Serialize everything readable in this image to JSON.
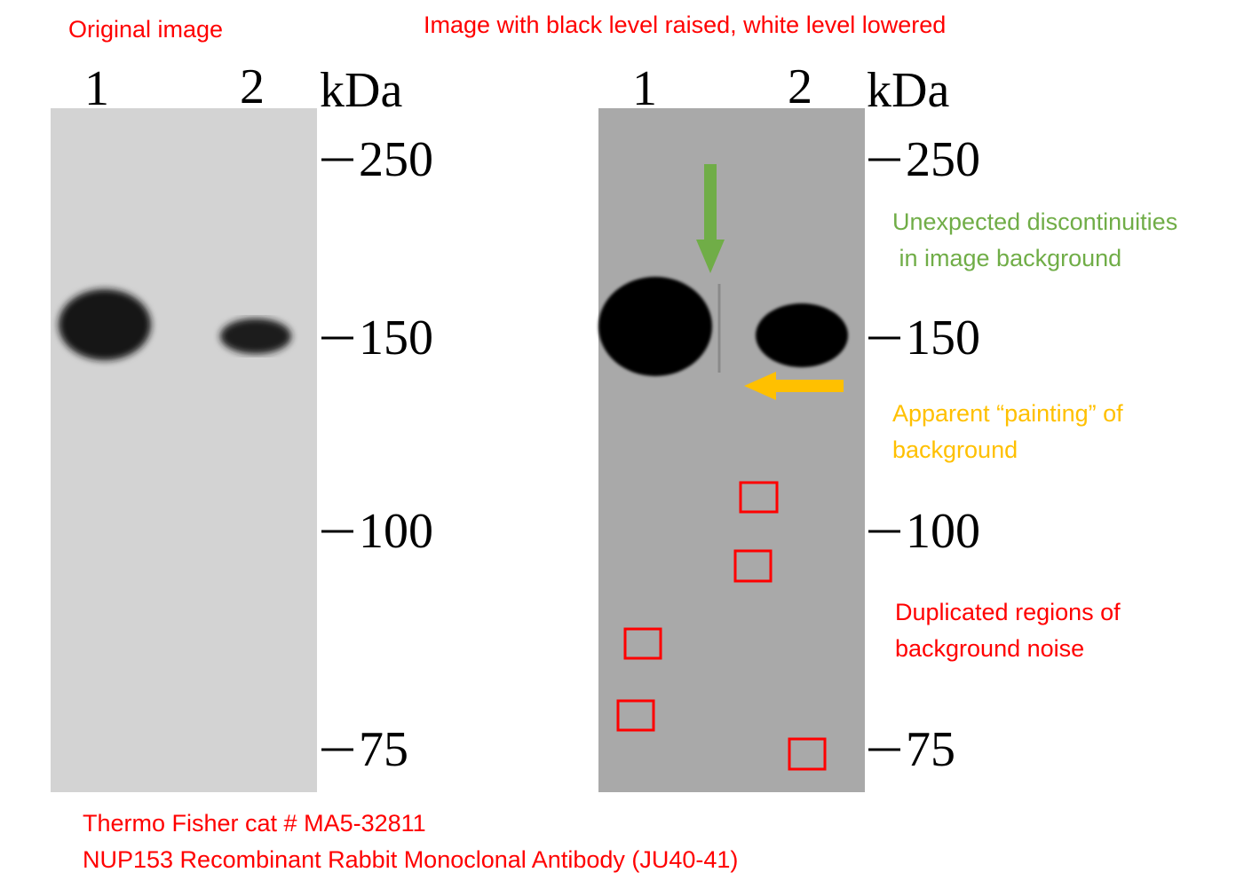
{
  "left_panel": {
    "title": "Original image",
    "lanes": [
      "1",
      "2"
    ],
    "unit": "kDa",
    "markers": [
      "250",
      "150",
      "100",
      "75"
    ]
  },
  "right_panel": {
    "title": "Image with black level raised, white level lowered",
    "lanes": [
      "1",
      "2"
    ],
    "unit": "kDa",
    "markers": [
      "250",
      "150",
      "100",
      "75"
    ]
  },
  "annotations": [
    {
      "lines": [
        "Unexpected discontinuities",
        " in image background"
      ]
    },
    {
      "lines": [
        "Apparent “painting” of",
        "background"
      ]
    },
    {
      "lines": [
        "Duplicated regions of",
        "background noise"
      ]
    }
  ],
  "footer": {
    "lines": [
      "Thermo Fisher cat # MA5-32811",
      "NUP153 Recombinant Rabbit Monoclonal Antibody (JU40-41)"
    ]
  }
}
